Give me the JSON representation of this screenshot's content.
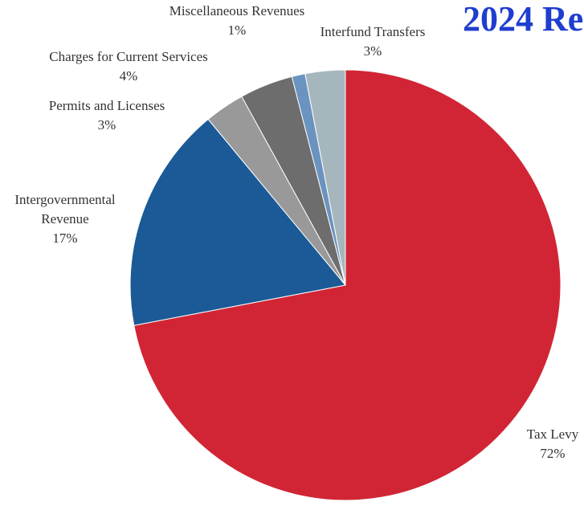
{
  "chart_data": {
    "type": "pie",
    "title": "2024 Re",
    "start_angle_deg": 0,
    "direction": "clockwise",
    "slices": [
      {
        "label": "Tax Levy",
        "value": 72,
        "value_label": "72%",
        "color": "#d12535"
      },
      {
        "label": "Intergovernmental Revenue",
        "label_lines": [
          "Intergovernmental",
          "Revenue"
        ],
        "value": 17,
        "value_label": "17%",
        "color": "#1b5a97"
      },
      {
        "label": "Permits and Licenses",
        "value": 3,
        "value_label": "3%",
        "color": "#999999"
      },
      {
        "label": "Charges for Current Services",
        "value": 4,
        "value_label": "4%",
        "color": "#6d6d6d"
      },
      {
        "label": "Miscellaneous Revenues",
        "value": 1,
        "value_label": "1%",
        "color": "#6b93bf"
      },
      {
        "label": "Interfund Transfers",
        "value": 3,
        "value_label": "3%",
        "color": "#a5b7bd"
      }
    ]
  }
}
